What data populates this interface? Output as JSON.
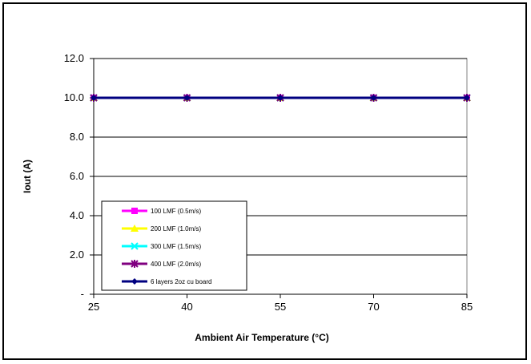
{
  "chart_data": {
    "type": "line",
    "title": "",
    "xlabel": "Ambient Air Temperature (°C)",
    "ylabel": "Iout (A)",
    "x": [
      25,
      40,
      55,
      70,
      85
    ],
    "x_tick_labels": [
      "25",
      "40",
      "55",
      "70",
      "85"
    ],
    "ylim": [
      0,
      12
    ],
    "y_ticks": [
      0,
      2,
      4,
      6,
      8,
      10,
      12
    ],
    "y_tick_labels": [
      "-",
      "2.0",
      "4.0",
      "6.0",
      "8.0",
      "10.0",
      "12.0"
    ],
    "grid": "horizontal",
    "legend_position": "bottom-left",
    "series": [
      {
        "name": "100 LMF (0.5m/s)",
        "values": [
          10,
          10,
          10,
          10,
          10
        ],
        "color": "#FF00FF",
        "marker": "square"
      },
      {
        "name": "200 LMF (1.0m/s)",
        "values": [
          10,
          10,
          10,
          10,
          10
        ],
        "color": "#FFFF00",
        "marker": "triangle"
      },
      {
        "name": "300 LMF (1.5m/s)",
        "values": [
          10,
          10,
          10,
          10,
          10
        ],
        "color": "#00FFFF",
        "marker": "x"
      },
      {
        "name": "400 LMF (2.0m/s)",
        "values": [
          10,
          10,
          10,
          10,
          10
        ],
        "color": "#800080",
        "marker": "star"
      },
      {
        "name": "6 layers 2oz cu board",
        "values": [
          10,
          10,
          10,
          10,
          10
        ],
        "color": "#000080",
        "marker": "diamond"
      }
    ]
  }
}
